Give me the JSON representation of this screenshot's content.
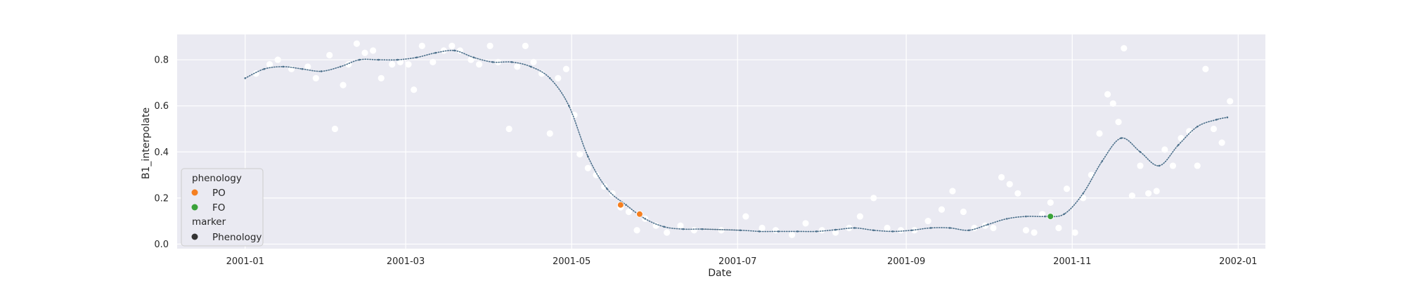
{
  "chart_data": {
    "type": "scatter",
    "xlabel": "Date",
    "ylabel": "B1_interpolate",
    "xlim": [
      "2000-12-07",
      "2002-01-11"
    ],
    "ylim": [
      -0.02,
      0.91
    ],
    "x_ticks": [
      "2001-01",
      "2001-03",
      "2001-05",
      "2001-07",
      "2001-09",
      "2001-11",
      "2002-01"
    ],
    "x_tick_dates": [
      "2001-01-01",
      "2001-03-01",
      "2001-05-01",
      "2001-07-01",
      "2001-09-01",
      "2001-11-01",
      "2002-01-01"
    ],
    "y_ticks": [
      "0.0",
      "0.2",
      "0.4",
      "0.6",
      "0.8"
    ],
    "y_tick_values": [
      0.0,
      0.2,
      0.4,
      0.6,
      0.8
    ],
    "grid": true,
    "legend_position": "lower-left",
    "legend": {
      "hue_title": "phenology",
      "hue_items": [
        {
          "label": "PO",
          "color": "#f57f20"
        },
        {
          "label": "FO",
          "color": "#3aa23a"
        }
      ],
      "style_title": "marker",
      "style_items": [
        {
          "label": "Phenology",
          "color": "#333333"
        }
      ]
    },
    "colors": {
      "background": "#eaeaf2",
      "raw_points": "#ffffff",
      "smooth_line": "#4b6f8a",
      "connector": "#888888",
      "PO": "#f57f20",
      "FO": "#3aa23a"
    },
    "smooth_series": {
      "name": "",
      "x": [
        "2001-01-01",
        "2001-01-08",
        "2001-01-15",
        "2001-01-22",
        "2001-01-29",
        "2001-02-05",
        "2001-02-12",
        "2001-02-19",
        "2001-02-26",
        "2001-03-05",
        "2001-03-12",
        "2001-03-19",
        "2001-03-26",
        "2001-04-02",
        "2001-04-09",
        "2001-04-16",
        "2001-04-23",
        "2001-04-30",
        "2001-05-07",
        "2001-05-14",
        "2001-05-21",
        "2001-05-28",
        "2001-06-04",
        "2001-06-11",
        "2001-06-18",
        "2001-07-02",
        "2001-07-09",
        "2001-07-16",
        "2001-07-23",
        "2001-07-30",
        "2001-08-06",
        "2001-08-13",
        "2001-08-20",
        "2001-08-27",
        "2001-09-03",
        "2001-09-10",
        "2001-09-17",
        "2001-09-24",
        "2001-10-01",
        "2001-10-08",
        "2001-10-15",
        "2001-10-22",
        "2001-10-29",
        "2001-11-05",
        "2001-11-12",
        "2001-11-19",
        "2001-11-26",
        "2001-12-03",
        "2001-12-10",
        "2001-12-17",
        "2001-12-24",
        "2001-12-28"
      ],
      "y": [
        0.72,
        0.76,
        0.77,
        0.76,
        0.75,
        0.77,
        0.8,
        0.8,
        0.8,
        0.81,
        0.83,
        0.84,
        0.81,
        0.79,
        0.79,
        0.77,
        0.72,
        0.6,
        0.38,
        0.24,
        0.17,
        0.11,
        0.075,
        0.065,
        0.065,
        0.06,
        0.055,
        0.055,
        0.055,
        0.055,
        0.062,
        0.07,
        0.06,
        0.055,
        0.06,
        0.07,
        0.07,
        0.06,
        0.085,
        0.11,
        0.12,
        0.12,
        0.13,
        0.22,
        0.36,
        0.46,
        0.4,
        0.34,
        0.43,
        0.51,
        0.54,
        0.55
      ]
    },
    "connector": {
      "x": [
        "2001-06-18",
        "2001-07-02"
      ],
      "y": [
        0.065,
        0.06
      ]
    },
    "phenology_points": [
      {
        "label": "PO",
        "date": "2001-05-19",
        "value": 0.17
      },
      {
        "label": "PO",
        "date": "2001-05-26",
        "value": 0.13
      },
      {
        "label": "FO",
        "date": "2001-10-24",
        "value": 0.12
      }
    ],
    "raw_points": {
      "x": [
        "2001-01-05",
        "2001-01-10",
        "2001-01-13",
        "2001-01-18",
        "2001-01-24",
        "2001-01-27",
        "2001-02-01",
        "2001-02-03",
        "2001-02-06",
        "2001-02-08",
        "2001-02-11",
        "2001-02-14",
        "2001-02-17",
        "2001-02-20",
        "2001-02-24",
        "2001-02-27",
        "2001-03-02",
        "2001-03-04",
        "2001-03-07",
        "2001-03-11",
        "2001-03-15",
        "2001-03-18",
        "2001-03-21",
        "2001-03-25",
        "2001-03-28",
        "2001-04-01",
        "2001-04-04",
        "2001-04-08",
        "2001-04-11",
        "2001-04-14",
        "2001-04-17",
        "2001-04-20",
        "2001-04-23",
        "2001-04-26",
        "2001-04-29",
        "2001-05-02",
        "2001-05-04",
        "2001-05-07",
        "2001-05-10",
        "2001-05-13",
        "2001-05-16",
        "2001-05-19",
        "2001-05-22",
        "2001-05-25",
        "2001-05-28",
        "2001-06-01",
        "2001-06-05",
        "2001-06-10",
        "2001-06-15",
        "2001-06-25",
        "2001-07-04",
        "2001-07-10",
        "2001-07-15",
        "2001-07-21",
        "2001-07-26",
        "2001-08-01",
        "2001-08-06",
        "2001-08-11",
        "2001-08-15",
        "2001-08-20",
        "2001-08-25",
        "2001-08-30",
        "2001-09-04",
        "2001-09-09",
        "2001-09-14",
        "2001-09-18",
        "2001-09-22",
        "2001-09-26",
        "2001-09-30",
        "2001-10-03",
        "2001-10-06",
        "2001-10-09",
        "2001-10-12",
        "2001-10-15",
        "2001-10-18",
        "2001-10-21",
        "2001-10-24",
        "2001-10-27",
        "2001-10-30",
        "2001-11-02",
        "2001-11-05",
        "2001-11-08",
        "2001-11-11",
        "2001-11-14",
        "2001-11-16",
        "2001-11-18",
        "2001-11-20",
        "2001-11-23",
        "2001-11-26",
        "2001-11-29",
        "2001-12-02",
        "2001-12-05",
        "2001-12-08",
        "2001-12-11",
        "2001-12-14",
        "2001-12-17",
        "2001-12-20",
        "2001-12-23",
        "2001-12-26",
        "2001-12-29"
      ],
      "y": [
        0.74,
        0.78,
        0.8,
        0.76,
        0.77,
        0.72,
        0.82,
        0.5,
        0.69,
        0.78,
        0.87,
        0.83,
        0.84,
        0.72,
        0.78,
        0.79,
        0.78,
        0.67,
        0.86,
        0.79,
        0.84,
        0.86,
        0.84,
        0.8,
        0.78,
        0.86,
        0.79,
        0.5,
        0.77,
        0.86,
        0.79,
        0.74,
        0.48,
        0.72,
        0.76,
        0.56,
        0.39,
        0.33,
        0.3,
        0.25,
        0.22,
        0.16,
        0.14,
        0.06,
        0.11,
        0.08,
        0.05,
        0.08,
        0.06,
        0.06,
        0.12,
        0.07,
        0.06,
        0.04,
        0.09,
        0.06,
        0.05,
        0.07,
        0.12,
        0.2,
        0.07,
        0.06,
        0.06,
        0.1,
        0.15,
        0.23,
        0.14,
        0.07,
        0.08,
        0.07,
        0.29,
        0.26,
        0.22,
        0.06,
        0.05,
        0.13,
        0.18,
        0.07,
        0.24,
        0.05,
        0.2,
        0.3,
        0.48,
        0.65,
        0.61,
        0.53,
        0.85,
        0.21,
        0.34,
        0.22,
        0.23,
        0.41,
        0.34,
        0.46,
        0.49,
        0.34,
        0.76,
        0.5,
        0.44,
        0.62
      ]
    }
  }
}
